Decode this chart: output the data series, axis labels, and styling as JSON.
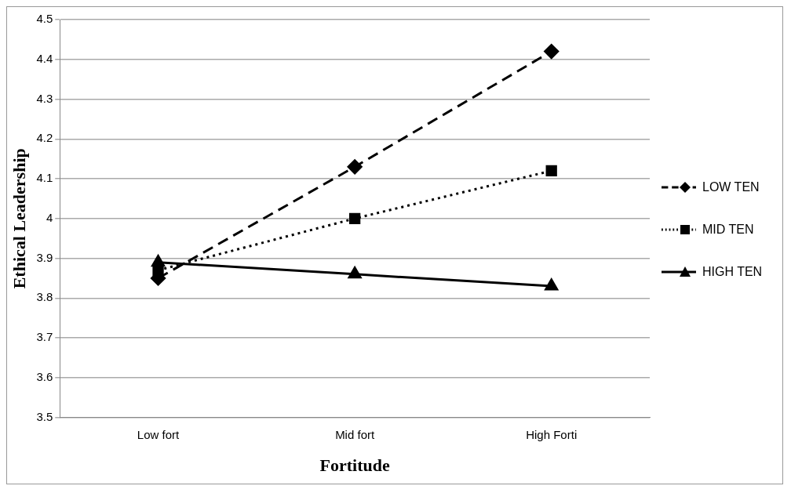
{
  "chart_data": {
    "type": "line",
    "xlabel": "Fortitude",
    "ylabel": "Ethical Leadership",
    "categories": [
      "Low fort",
      "Mid fort",
      "High Forti"
    ],
    "series": [
      {
        "name": "LOW TEN",
        "color": "#000000",
        "values": [
          3.85,
          4.13,
          4.42
        ],
        "marker": "diamond",
        "line_style": "dashed"
      },
      {
        "name": "MID TEN",
        "color": "#000000",
        "values": [
          3.87,
          4.0,
          4.12
        ],
        "marker": "square",
        "line_style": "dotted"
      },
      {
        "name": "HIGH TEN",
        "color": "#000000",
        "values": [
          3.89,
          3.86,
          3.83
        ],
        "marker": "triangle",
        "line_style": "solid"
      }
    ],
    "ylim": [
      3.5,
      4.5
    ],
    "yticks": [
      3.5,
      3.6,
      3.7,
      3.8,
      3.9,
      4,
      4.1,
      4.2,
      4.3,
      4.4,
      4.5
    ],
    "grid": "y",
    "legend": "right"
  }
}
